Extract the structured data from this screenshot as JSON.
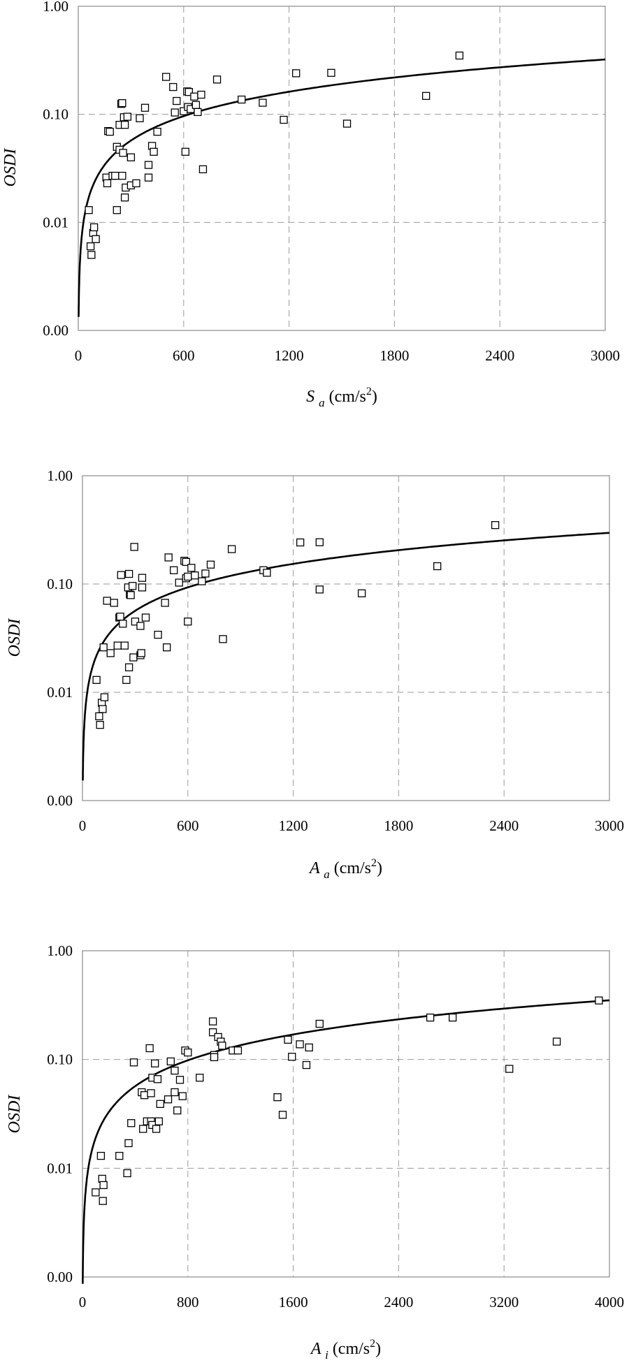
{
  "chart_data": [
    {
      "type": "scatter",
      "id": "sa",
      "ylabel": "OSDI",
      "xlabel": {
        "symbol": "S",
        "sub": "a",
        "unit": "(cm/s",
        "sup": "2",
        "close": ")"
      },
      "y_scale": "log",
      "y_tick_labels": [
        "0.00",
        "0.01",
        "0.10",
        "1.00"
      ],
      "x_ticks": [
        0,
        600,
        1200,
        1800,
        2400,
        3000
      ],
      "x_tick_labels": [
        "0",
        "600",
        "1200",
        "1800",
        "2400",
        "3000"
      ],
      "xlim": [
        0,
        3000
      ],
      "grid": true,
      "points": [
        [
          60,
          0.013
        ],
        [
          70,
          0.006
        ],
        [
          75,
          0.005
        ],
        [
          85,
          0.008
        ],
        [
          90,
          0.009
        ],
        [
          100,
          0.007
        ],
        [
          160,
          0.026
        ],
        [
          165,
          0.023
        ],
        [
          170,
          0.07
        ],
        [
          180,
          0.069
        ],
        [
          195,
          0.027
        ],
        [
          210,
          0.027
        ],
        [
          220,
          0.013
        ],
        [
          220,
          0.05
        ],
        [
          235,
          0.08
        ],
        [
          235,
          0.047
        ],
        [
          245,
          0.125
        ],
        [
          250,
          0.127
        ],
        [
          250,
          0.027
        ],
        [
          255,
          0.044
        ],
        [
          260,
          0.094
        ],
        [
          265,
          0.08
        ],
        [
          265,
          0.017
        ],
        [
          270,
          0.021
        ],
        [
          280,
          0.095
        ],
        [
          300,
          0.04
        ],
        [
          300,
          0.022
        ],
        [
          330,
          0.023
        ],
        [
          350,
          0.092
        ],
        [
          380,
          0.115
        ],
        [
          400,
          0.034
        ],
        [
          400,
          0.026
        ],
        [
          420,
          0.051
        ],
        [
          430,
          0.045
        ],
        [
          450,
          0.069
        ],
        [
          500,
          0.222
        ],
        [
          540,
          0.179
        ],
        [
          550,
          0.104
        ],
        [
          560,
          0.133
        ],
        [
          600,
          0.107
        ],
        [
          610,
          0.045
        ],
        [
          620,
          0.163
        ],
        [
          625,
          0.117
        ],
        [
          630,
          0.161
        ],
        [
          640,
          0.112
        ],
        [
          660,
          0.146
        ],
        [
          670,
          0.122
        ],
        [
          680,
          0.105
        ],
        [
          700,
          0.152
        ],
        [
          710,
          0.031
        ],
        [
          790,
          0.21
        ],
        [
          930,
          0.137
        ],
        [
          1050,
          0.128
        ],
        [
          1170,
          0.089
        ],
        [
          1240,
          0.24
        ],
        [
          1440,
          0.242
        ],
        [
          1530,
          0.082
        ],
        [
          1980,
          0.148
        ],
        [
          2170,
          0.35
        ]
      ],
      "fit": {
        "a": 0.000794,
        "b": 0.75
      }
    },
    {
      "type": "scatter",
      "id": "aa",
      "ylabel": "OSDI",
      "xlabel": {
        "symbol": "A",
        "sub": "a",
        "unit": "(cm/s",
        "sup": "2",
        "close": ")"
      },
      "y_scale": "log",
      "y_tick_labels": [
        "0.00",
        "0.01",
        "0.10",
        "1.00"
      ],
      "x_ticks": [
        0,
        600,
        1200,
        1800,
        2400,
        3000
      ],
      "x_tick_labels": [
        "0",
        "600",
        "1200",
        "1800",
        "2400",
        "3000"
      ],
      "xlim": [
        0,
        3000
      ],
      "grid": true,
      "points": [
        [
          80,
          0.013
        ],
        [
          95,
          0.006
        ],
        [
          100,
          0.005
        ],
        [
          110,
          0.008
        ],
        [
          115,
          0.007
        ],
        [
          120,
          0.026
        ],
        [
          125,
          0.009
        ],
        [
          140,
          0.07
        ],
        [
          160,
          0.023
        ],
        [
          180,
          0.067
        ],
        [
          200,
          0.027
        ],
        [
          210,
          0.049
        ],
        [
          215,
          0.05
        ],
        [
          220,
          0.121
        ],
        [
          230,
          0.043
        ],
        [
          240,
          0.027
        ],
        [
          250,
          0.013
        ],
        [
          260,
          0.093
        ],
        [
          265,
          0.124
        ],
        [
          265,
          0.017
        ],
        [
          270,
          0.08
        ],
        [
          275,
          0.079
        ],
        [
          285,
          0.096
        ],
        [
          290,
          0.021
        ],
        [
          295,
          0.22
        ],
        [
          300,
          0.045
        ],
        [
          330,
          0.041
        ],
        [
          330,
          0.022
        ],
        [
          335,
          0.023
        ],
        [
          340,
          0.093
        ],
        [
          340,
          0.114
        ],
        [
          360,
          0.049
        ],
        [
          430,
          0.034
        ],
        [
          470,
          0.067
        ],
        [
          480,
          0.026
        ],
        [
          490,
          0.176
        ],
        [
          520,
          0.134
        ],
        [
          550,
          0.103
        ],
        [
          580,
          0.164
        ],
        [
          590,
          0.16
        ],
        [
          590,
          0.113
        ],
        [
          600,
          0.117
        ],
        [
          600,
          0.045
        ],
        [
          620,
          0.141
        ],
        [
          640,
          0.12
        ],
        [
          680,
          0.106
        ],
        [
          700,
          0.125
        ],
        [
          730,
          0.151
        ],
        [
          800,
          0.031
        ],
        [
          850,
          0.21
        ],
        [
          1030,
          0.134
        ],
        [
          1050,
          0.127
        ],
        [
          1240,
          0.242
        ],
        [
          1350,
          0.243
        ],
        [
          1350,
          0.089
        ],
        [
          1590,
          0.082
        ],
        [
          2020,
          0.146
        ],
        [
          2350,
          0.35
        ]
      ],
      "fit": {
        "a": 0.000931,
        "b": 0.72
      }
    },
    {
      "type": "scatter",
      "id": "ai",
      "ylabel": "OSDI",
      "xlabel": {
        "symbol": "A",
        "sub": "i",
        "unit": "(cm/s",
        "sup": "2",
        "close": ")"
      },
      "y_scale": "log",
      "y_tick_labels": [
        "0.00",
        "0.01",
        "0.10",
        "1.00"
      ],
      "x_ticks": [
        0,
        800,
        1600,
        2400,
        3200,
        4000
      ],
      "x_tick_labels": [
        "0",
        "800",
        "1600",
        "2400",
        "3200",
        "4000"
      ],
      "xlim": [
        0,
        4000
      ],
      "grid": true,
      "points": [
        [
          100,
          0.006
        ],
        [
          140,
          0.013
        ],
        [
          150,
          0.008
        ],
        [
          155,
          0.005
        ],
        [
          160,
          0.007
        ],
        [
          280,
          0.013
        ],
        [
          340,
          0.009
        ],
        [
          350,
          0.017
        ],
        [
          370,
          0.026
        ],
        [
          390,
          0.094
        ],
        [
          450,
          0.05
        ],
        [
          460,
          0.023
        ],
        [
          470,
          0.047
        ],
        [
          490,
          0.027
        ],
        [
          510,
          0.127
        ],
        [
          520,
          0.027
        ],
        [
          520,
          0.049
        ],
        [
          530,
          0.025
        ],
        [
          530,
          0.068
        ],
        [
          550,
          0.092
        ],
        [
          560,
          0.023
        ],
        [
          570,
          0.066
        ],
        [
          580,
          0.027
        ],
        [
          590,
          0.039
        ],
        [
          650,
          0.043
        ],
        [
          670,
          0.096
        ],
        [
          700,
          0.079
        ],
        [
          700,
          0.05
        ],
        [
          720,
          0.034
        ],
        [
          740,
          0.065
        ],
        [
          760,
          0.046
        ],
        [
          780,
          0.121
        ],
        [
          800,
          0.116
        ],
        [
          890,
          0.068
        ],
        [
          990,
          0.224
        ],
        [
          990,
          0.178
        ],
        [
          1000,
          0.11
        ],
        [
          1000,
          0.105
        ],
        [
          1030,
          0.161
        ],
        [
          1050,
          0.146
        ],
        [
          1060,
          0.134
        ],
        [
          1140,
          0.121
        ],
        [
          1180,
          0.121
        ],
        [
          1480,
          0.045
        ],
        [
          1520,
          0.031
        ],
        [
          1560,
          0.152
        ],
        [
          1590,
          0.106
        ],
        [
          1650,
          0.138
        ],
        [
          1700,
          0.089
        ],
        [
          1720,
          0.129
        ],
        [
          1800,
          0.213
        ],
        [
          2640,
          0.243
        ],
        [
          2810,
          0.243
        ],
        [
          3240,
          0.082
        ],
        [
          3600,
          0.146
        ],
        [
          3920,
          0.349
        ]
      ],
      "fit": {
        "a": 0.0005,
        "b": 0.79
      }
    }
  ]
}
